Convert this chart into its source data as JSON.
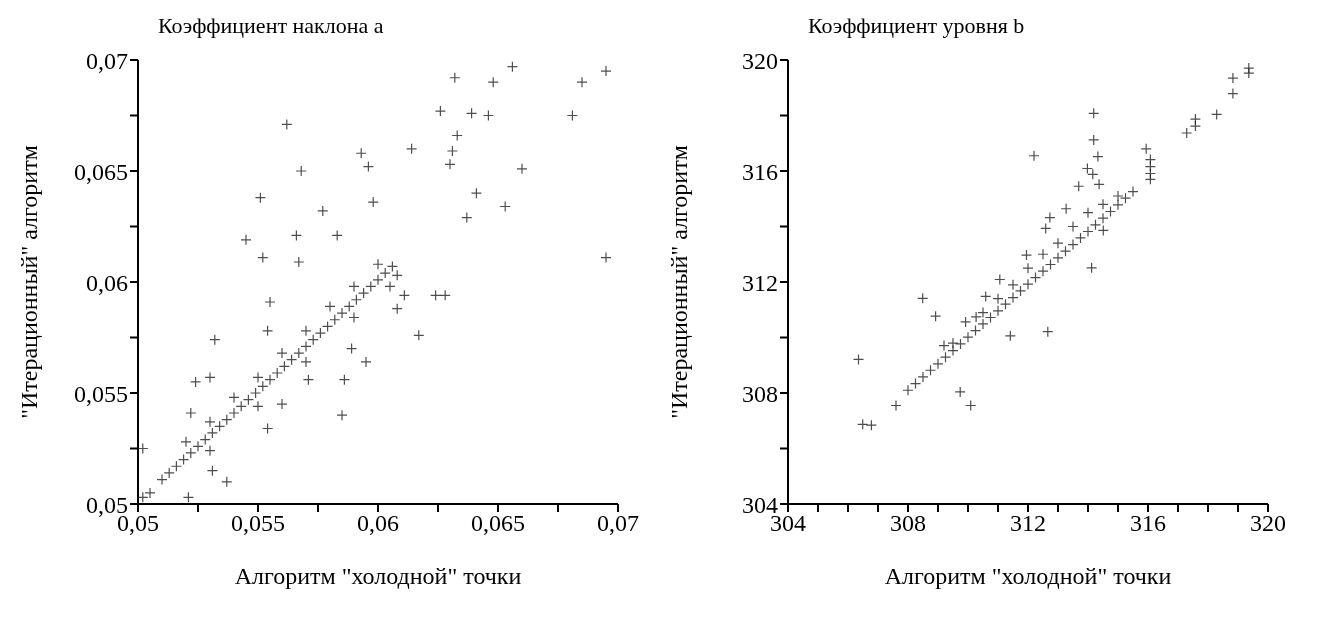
{
  "chart_data": [
    {
      "type": "scatter",
      "title": "Коэффициент наклона a",
      "xlabel": "Алгоритм \"холодной\" точки",
      "ylabel": "\"Итерационный\" алгоритм",
      "marker": "cross",
      "xlim": [
        0.05,
        0.07
      ],
      "ylim": [
        0.05,
        0.07
      ],
      "xticks": [
        {
          "value": 0.05,
          "label": "0,05"
        },
        {
          "value": 0.0525,
          "label": null
        },
        {
          "value": 0.055,
          "label": "0,055"
        },
        {
          "value": 0.0575,
          "label": null
        },
        {
          "value": 0.06,
          "label": "0,06"
        },
        {
          "value": 0.0625,
          "label": null
        },
        {
          "value": 0.065,
          "label": "0,065"
        },
        {
          "value": 0.0675,
          "label": null
        },
        {
          "value": 0.07,
          "label": "0,07"
        }
      ],
      "yticks": [
        {
          "value": 0.05,
          "label": "0,05"
        },
        {
          "value": 0.0525,
          "label": null
        },
        {
          "value": 0.055,
          "label": "0,055"
        },
        {
          "value": 0.0575,
          "label": null
        },
        {
          "value": 0.06,
          "label": "0,06"
        },
        {
          "value": 0.0625,
          "label": null
        },
        {
          "value": 0.065,
          "label": "0,065"
        },
        {
          "value": 0.0675,
          "label": null
        },
        {
          "value": 0.07,
          "label": "0,07"
        }
      ],
      "series": [
        {
          "color": "#222222",
          "x": [
            0.0656,
            0.0695,
            0.0632,
            0.0648,
            0.0685,
            0.0681,
            0.0562,
            0.0626,
            0.0639,
            0.0646,
            0.0633,
            0.0614,
            0.0631,
            0.0593,
            0.0596,
            0.0568,
            0.063,
            0.066,
            0.0551,
            0.0598,
            0.0641,
            0.0653,
            0.0577,
            0.0637,
            0.0545,
            0.0566,
            0.0583,
            0.0552,
            0.0567,
            0.0695,
            0.0624,
            0.0628,
            0.0611,
            0.0617,
            0.0608,
            0.0595,
            0.0589,
            0.0586,
            0.0585,
            0.0532,
            0.0524,
            0.053,
            0.0555,
            0.0554,
            0.0537,
            0.0521,
            0.0502,
            0.0554,
            0.0531,
            0.0522,
            0.056,
            0.0571,
            0.0502,
            0.0505,
            0.051,
            0.0513,
            0.0516,
            0.0519,
            0.0522,
            0.0525,
            0.0528,
            0.0531,
            0.0534,
            0.0537,
            0.054,
            0.0543,
            0.0546,
            0.0549,
            0.0552,
            0.0555,
            0.0558,
            0.0561,
            0.0564,
            0.0567,
            0.057,
            0.0573,
            0.0576,
            0.0579,
            0.0582,
            0.0585,
            0.0588,
            0.0591,
            0.0594,
            0.0597,
            0.06,
            0.0603,
            0.0606,
            0.052,
            0.053,
            0.054,
            0.055,
            0.056,
            0.057,
            0.058,
            0.059,
            0.06,
            0.053,
            0.055,
            0.057,
            0.059,
            0.0605,
            0.0608
          ],
          "values": [
            0.0697,
            0.0695,
            0.0692,
            0.069,
            0.069,
            0.0675,
            0.0671,
            0.0677,
            0.0676,
            0.0675,
            0.0666,
            0.066,
            0.0659,
            0.0658,
            0.0652,
            0.065,
            0.0653,
            0.0651,
            0.0638,
            0.0636,
            0.064,
            0.0634,
            0.0632,
            0.0629,
            0.0619,
            0.0621,
            0.0621,
            0.0611,
            0.0609,
            0.0611,
            0.0594,
            0.0594,
            0.0594,
            0.0576,
            0.0588,
            0.0564,
            0.057,
            0.0556,
            0.054,
            0.0574,
            0.0555,
            0.0557,
            0.0591,
            0.0578,
            0.051,
            0.0503,
            0.0525,
            0.0534,
            0.0515,
            0.0541,
            0.0545,
            0.0556,
            0.0503,
            0.0505,
            0.0511,
            0.0514,
            0.0517,
            0.052,
            0.0523,
            0.0526,
            0.0529,
            0.0532,
            0.0535,
            0.0538,
            0.0541,
            0.0544,
            0.0547,
            0.055,
            0.0553,
            0.0556,
            0.0559,
            0.0562,
            0.0565,
            0.0568,
            0.0571,
            0.0574,
            0.0577,
            0.058,
            0.0583,
            0.0586,
            0.0589,
            0.0592,
            0.0595,
            0.0598,
            0.0601,
            0.0604,
            0.0607,
            0.0528,
            0.0537,
            0.0548,
            0.0557,
            0.0568,
            0.0578,
            0.0589,
            0.0598,
            0.0608,
            0.0524,
            0.0544,
            0.0564,
            0.0584,
            0.0598,
            0.0603
          ]
        }
      ]
    },
    {
      "type": "scatter",
      "title": "Коэффициент уровня b",
      "xlabel": "Алгоритм \"холодной\" точки",
      "ylabel": "\"Итерационный\" алгоритм",
      "marker": "cross",
      "xlim": [
        304,
        320
      ],
      "ylim": [
        304,
        320
      ],
      "xticks": [
        304,
        {
          "value": 305,
          "label": null
        },
        {
          "value": 306,
          "label": null
        },
        {
          "value": 307,
          "label": null
        },
        308,
        {
          "value": 309,
          "label": null
        },
        {
          "value": 310,
          "label": null
        },
        {
          "value": 311,
          "label": null
        },
        312,
        {
          "value": 313,
          "label": null
        },
        {
          "value": 314,
          "label": null
        },
        {
          "value": 315,
          "label": null
        },
        316,
        {
          "value": 317,
          "label": null
        },
        {
          "value": 318,
          "label": null
        },
        {
          "value": 319,
          "label": null
        },
        320
      ],
      "yticks": [
        304,
        {
          "value": 306,
          "label": null
        },
        308,
        {
          "value": 310,
          "label": null
        },
        312,
        {
          "value": 314,
          "label": null
        },
        316,
        {
          "value": 318,
          "label": null
        },
        320
      ],
      "series": [
        {
          "color": "#222222",
          "x": [
            319.36,
            319.36,
            318.83,
            318.83,
            318.29,
            317.58,
            317.58,
            317.29,
            314.19,
            314.19,
            314.33,
            312.2,
            313.98,
            314.16,
            314.37,
            313.69,
            315.94,
            316.08,
            316.08,
            316.08,
            316.08,
            314.12,
            312.66,
            311.41,
            306.35,
            308.49,
            308.92,
            309.74,
            310.09,
            306.49,
            306.78,
            307.6,
            313.27,
            312.73,
            312.59,
            311.95,
            311.06,
            310.59,
            310.27,
            309.92,
            309.2,
            314.51,
            308.0,
            308.25,
            308.5,
            308.75,
            309,
            309.25,
            309.5,
            309.75,
            310,
            310.25,
            310.5,
            310.75,
            311,
            311.25,
            311.5,
            311.75,
            312,
            312.25,
            312.5,
            312.75,
            313,
            313.25,
            313.5,
            313.75,
            314,
            314.25,
            314.5,
            314.75,
            315,
            315.25,
            315.5,
            309.5,
            310.5,
            311,
            311.5,
            312,
            312.5,
            313,
            313.5,
            314,
            314.5,
            315
          ],
          "values": [
            319.71,
            319.53,
            319.35,
            318.79,
            318.04,
            317.87,
            317.62,
            317.37,
            318.08,
            317.12,
            316.52,
            316.55,
            316.09,
            315.88,
            315.52,
            315.45,
            316.8,
            316.41,
            316.16,
            315.91,
            315.7,
            312.51,
            310.21,
            310.06,
            309.21,
            311.41,
            310.77,
            308.04,
            307.55,
            306.87,
            306.84,
            307.55,
            314.64,
            314.32,
            313.93,
            312.97,
            312.09,
            311.48,
            310.74,
            310.56,
            309.71,
            313.86,
            308.1,
            308.34,
            308.58,
            308.82,
            309.05,
            309.29,
            309.53,
            309.77,
            310.01,
            310.25,
            310.49,
            310.72,
            310.96,
            311.2,
            311.44,
            311.68,
            311.92,
            312.16,
            312.39,
            312.63,
            312.87,
            313.11,
            313.35,
            313.59,
            313.82,
            314.06,
            314.3,
            314.54,
            314.78,
            315.02,
            315.26,
            309.8,
            310.9,
            311.4,
            311.9,
            312.5,
            313,
            313.4,
            314,
            314.5,
            314.8,
            315.1
          ]
        }
      ]
    }
  ]
}
